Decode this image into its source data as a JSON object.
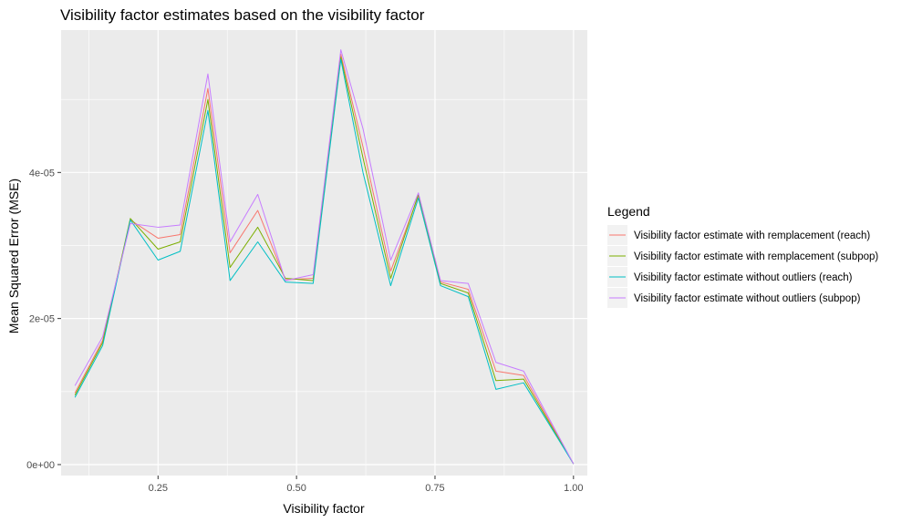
{
  "chart_data": {
    "type": "line",
    "title": "Visibility factor estimates based on the visibility factor",
    "xlabel": "Visibility factor",
    "ylabel": "Mean Squared Error (MSE)",
    "xlim": [
      0.075,
      1.025
    ],
    "ylim": [
      -1.5e-06,
      5.95e-05
    ],
    "x_ticks": [
      {
        "value": 0.25,
        "label": "0.25"
      },
      {
        "value": 0.5,
        "label": "0.50"
      },
      {
        "value": 0.75,
        "label": "0.75"
      },
      {
        "value": 1.0,
        "label": "1.00"
      }
    ],
    "y_ticks": [
      {
        "value": 0,
        "label": "0e+00"
      },
      {
        "value": 2e-05,
        "label": "2e-05"
      },
      {
        "value": 4e-05,
        "label": "4e-05"
      }
    ],
    "grid": true,
    "legend_title": "Legend",
    "legend_position": "right",
    "x": [
      0.1,
      0.15,
      0.2,
      0.25,
      0.29,
      0.34,
      0.38,
      0.43,
      0.48,
      0.53,
      0.58,
      0.62,
      0.67,
      0.72,
      0.76,
      0.81,
      0.86,
      0.91,
      1.0
    ],
    "series": [
      {
        "name": "Visibility factor estimate with remplacement (reach)",
        "color": "#F8766D",
        "values": [
          9.8e-06,
          1.7e-05,
          3.35e-05,
          3.1e-05,
          3.15e-05,
          5.15e-05,
          2.9e-05,
          3.48e-05,
          2.53e-05,
          2.55e-05,
          5.62e-05,
          4.35e-05,
          2.65e-05,
          3.68e-05,
          2.5e-05,
          2.4e-05,
          1.28e-05,
          1.22e-05,
          1e-07
        ]
      },
      {
        "name": "Visibility factor estimate with remplacement (subpop)",
        "color": "#7CAE00",
        "values": [
          9.5e-06,
          1.67e-05,
          3.37e-05,
          2.95e-05,
          3.05e-05,
          5e-05,
          2.7e-05,
          3.25e-05,
          2.55e-05,
          2.52e-05,
          5.58e-05,
          4.2e-05,
          2.55e-05,
          3.7e-05,
          2.48e-05,
          2.35e-05,
          1.15e-05,
          1.17e-05,
          1e-07
        ]
      },
      {
        "name": "Visibility factor estimate without outliers (reach)",
        "color": "#00BFC4",
        "values": [
          9.2e-06,
          1.63e-05,
          3.35e-05,
          2.8e-05,
          2.92e-05,
          4.85e-05,
          2.52e-05,
          3.05e-05,
          2.5e-05,
          2.48e-05,
          5.55e-05,
          4e-05,
          2.45e-05,
          3.65e-05,
          2.45e-05,
          2.3e-05,
          1.03e-05,
          1.12e-05,
          1e-07
        ]
      },
      {
        "name": "Visibility factor estimate without outliers (subpop)",
        "color": "#C77CFF",
        "values": [
          1.08e-05,
          1.75e-05,
          3.3e-05,
          3.25e-05,
          3.28e-05,
          5.35e-05,
          3.05e-05,
          3.7e-05,
          2.52e-05,
          2.6e-05,
          5.68e-05,
          4.6e-05,
          2.8e-05,
          3.72e-05,
          2.52e-05,
          2.48e-05,
          1.4e-05,
          1.28e-05,
          1e-07
        ]
      }
    ]
  }
}
